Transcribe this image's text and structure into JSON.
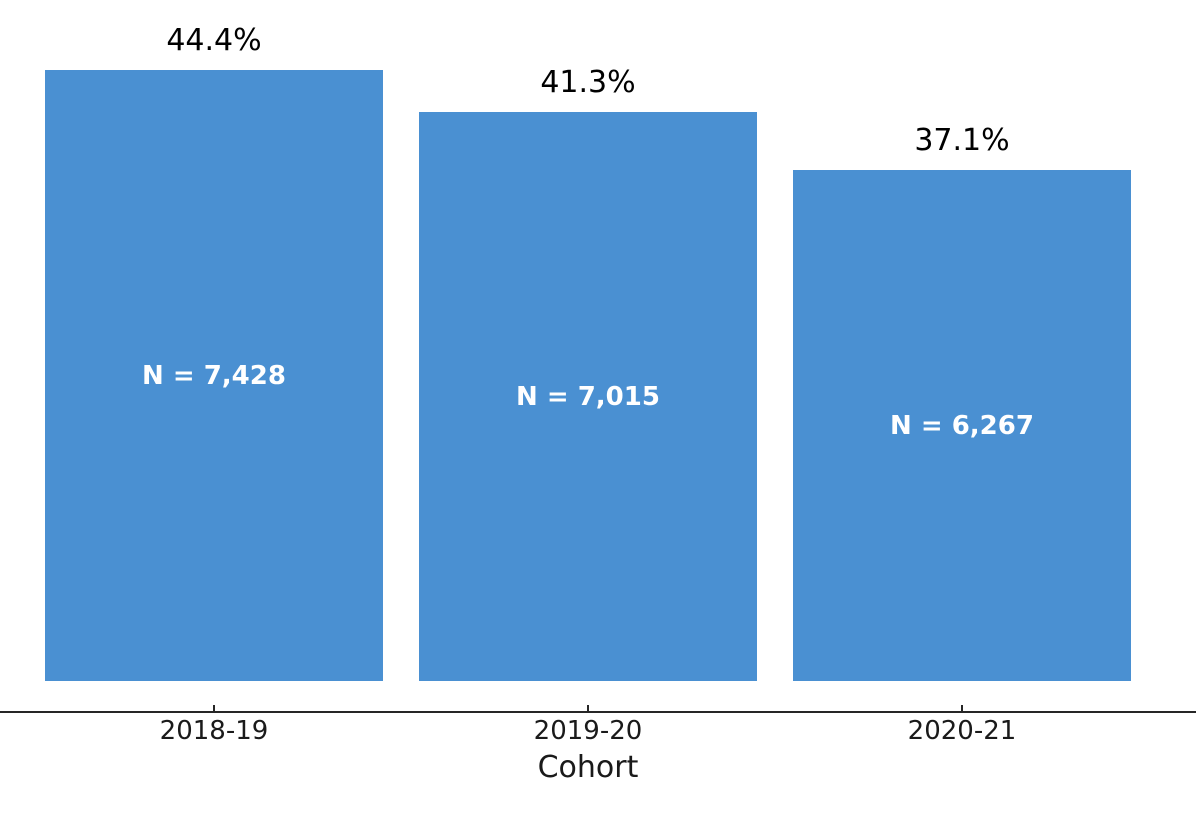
{
  "chart_data": {
    "type": "bar",
    "title": "",
    "xlabel": "Cohort",
    "ylabel": "",
    "categories": [
      "2018-19",
      "2019-20",
      "2020-21"
    ],
    "series": [
      {
        "name": "percent",
        "values": [
          44.4,
          41.3,
          37.1
        ]
      }
    ],
    "value_labels": [
      "44.4%",
      "41.3%",
      "37.1%"
    ],
    "bar_inner_labels": [
      "N = 7,428",
      "N = 7,015",
      "N = 6,267"
    ],
    "n_values": [
      7428,
      7015,
      6267
    ],
    "ylim": [
      0,
      50
    ],
    "grid": false,
    "legend_position": "none",
    "colors": {
      "bar_fill": "#4a90d2",
      "value_label": "#000000",
      "bar_inner_label": "#ffffff",
      "axis_line": "#262626",
      "tick_label": "#1a1a1a",
      "background": "#ffffff"
    }
  }
}
